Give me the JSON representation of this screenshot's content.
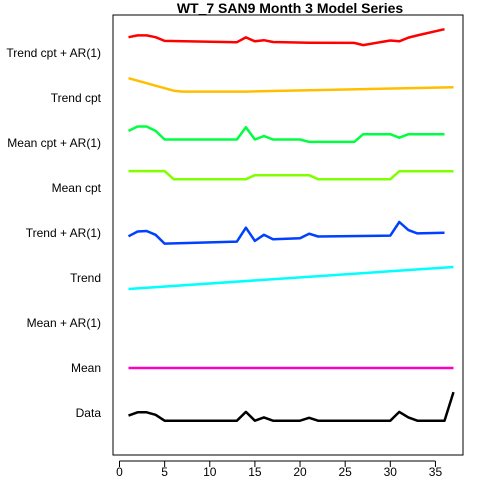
{
  "chart_data": {
    "type": "line",
    "title": "WT_7 SAN9 Month 3 Model Series",
    "xlabel": "",
    "ylabel": "",
    "xlim": [
      0,
      38
    ],
    "x_ticks": [
      0,
      5,
      10,
      15,
      20,
      25,
      30,
      35
    ],
    "x_tick_labels": [
      "0",
      "5",
      "10",
      "15",
      "20",
      "25",
      "30",
      "35"
    ],
    "grid": false,
    "legend": "none",
    "row_labels": [
      "Trend cpt + AR(1)",
      "Trend cpt",
      "Mean cpt + AR(1)",
      "Mean cpt",
      "Trend + AR(1)",
      "Trend",
      "Mean + AR(1)",
      "Mean",
      "Data"
    ],
    "series": [
      {
        "name": "Trend cpt + AR(1)",
        "color": "#ff0000",
        "row": 0,
        "x": [
          1,
          2,
          3,
          4,
          5,
          13,
          14,
          15,
          16,
          17,
          21,
          26,
          27,
          30,
          31,
          32,
          33,
          36
        ],
        "y": [
          0.72,
          0.8,
          0.8,
          0.72,
          0.55,
          0.49,
          0.71,
          0.53,
          0.58,
          0.5,
          0.47,
          0.46,
          0.36,
          0.57,
          0.53,
          0.7,
          0.8,
          1.08
        ]
      },
      {
        "name": "Trend cpt",
        "color": "#ffbf00",
        "row": 1,
        "x": [
          1,
          6,
          7,
          14,
          37
        ],
        "y": [
          0.9,
          0.33,
          0.29,
          0.29,
          0.49
        ]
      },
      {
        "name": "Mean cpt + AR(1)",
        "color": "#00ff40",
        "row": 2,
        "x": [
          1,
          2,
          3,
          4,
          5,
          13,
          14,
          15,
          16,
          17,
          20,
          21,
          26,
          27,
          30,
          31,
          32,
          33,
          36
        ],
        "y": [
          0.55,
          0.75,
          0.75,
          0.55,
          0.16,
          0.16,
          0.72,
          0.16,
          0.32,
          0.16,
          0.16,
          0.05,
          0.05,
          0.4,
          0.4,
          0.24,
          0.4,
          0.4,
          0.4
        ]
      },
      {
        "name": "Mean cpt",
        "color": "#80ff00",
        "row": 3,
        "x": [
          1,
          5,
          6,
          14,
          15,
          21,
          22,
          30,
          31,
          37
        ],
        "y": [
          0.77,
          0.77,
          0.4,
          0.4,
          0.58,
          0.58,
          0.4,
          0.4,
          0.76,
          0.76
        ]
      },
      {
        "name": "Trend + AR(1)",
        "color": "#0040ff",
        "row": 4,
        "x": [
          1,
          2,
          3,
          4,
          5,
          13,
          14,
          15,
          16,
          17,
          20,
          21,
          22,
          30,
          31,
          32,
          33,
          36
        ],
        "y": [
          -0.15,
          0.07,
          0.09,
          -0.08,
          -0.48,
          -0.39,
          0.24,
          -0.36,
          -0.08,
          -0.28,
          -0.24,
          -0.03,
          -0.16,
          -0.12,
          0.5,
          0.13,
          -0.02,
          0.01
        ]
      },
      {
        "name": "Trend",
        "color": "#00ffff",
        "row": 5,
        "x": [
          1,
          37
        ],
        "y": [
          -0.5,
          0.5
        ]
      },
      {
        "name": "Mean + AR(1)",
        "color": "#8000ff",
        "row": 6,
        "x": [],
        "y": []
      },
      {
        "name": "Mean",
        "color": "#ff00bf",
        "row": 7,
        "x": [
          1,
          37
        ],
        "y": [
          0,
          0
        ]
      },
      {
        "name": "Data",
        "color": "#000000",
        "row": 8,
        "x": [
          1,
          2,
          3,
          4,
          5,
          13,
          14,
          15,
          16,
          17,
          20,
          21,
          22,
          30,
          31,
          32,
          33,
          36,
          37
        ],
        "y": [
          -0.12,
          0.03,
          0.03,
          -0.08,
          -0.35,
          -0.35,
          0.05,
          -0.35,
          -0.2,
          -0.35,
          -0.35,
          -0.22,
          -0.35,
          -0.35,
          0.05,
          -0.2,
          -0.35,
          -0.35,
          0.95
        ]
      }
    ]
  }
}
